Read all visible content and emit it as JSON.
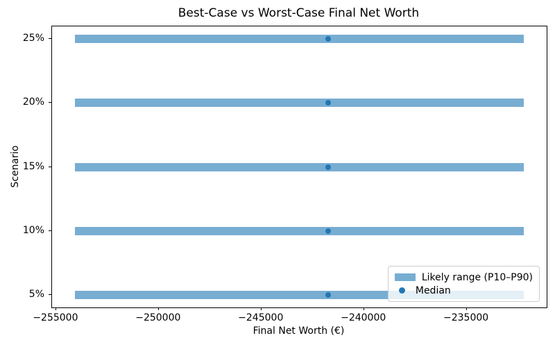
{
  "chart_data": {
    "type": "range_dot_horizontal_bar",
    "title": "Best-Case vs Worst-Case Final Net Worth",
    "xlabel": "Final Net Worth (€)",
    "ylabel": "Scenario",
    "categories": [
      "5%",
      "10%",
      "15%",
      "20%",
      "25%"
    ],
    "series": [
      {
        "name": "Likely range (P10–P90)",
        "p10": [
          -254100,
          -254100,
          -254100,
          -254100,
          -254100
        ],
        "p90": [
          -232200,
          -232200,
          -232200,
          -232200,
          -232200
        ]
      },
      {
        "name": "Median",
        "values": [
          -241750,
          -241750,
          -241750,
          -241750,
          -241750
        ]
      }
    ],
    "xlim": [
      -255200,
      -231100
    ],
    "xticks": [
      {
        "value": -255000,
        "label": "−255000"
      },
      {
        "value": -250000,
        "label": "−250000"
      },
      {
        "value": -245000,
        "label": "−245000"
      },
      {
        "value": -240000,
        "label": "−240000"
      },
      {
        "value": -235000,
        "label": "−235000"
      }
    ],
    "legend": {
      "position": "lower right",
      "items": [
        {
          "label": "Likely range (P10–P90)"
        },
        {
          "label": "Median"
        }
      ]
    },
    "colors": {
      "range_bar": "#78add2",
      "median_dot": "#2278b4",
      "spine": "#000000",
      "legend_border": "#cccccc"
    },
    "grid": false
  }
}
